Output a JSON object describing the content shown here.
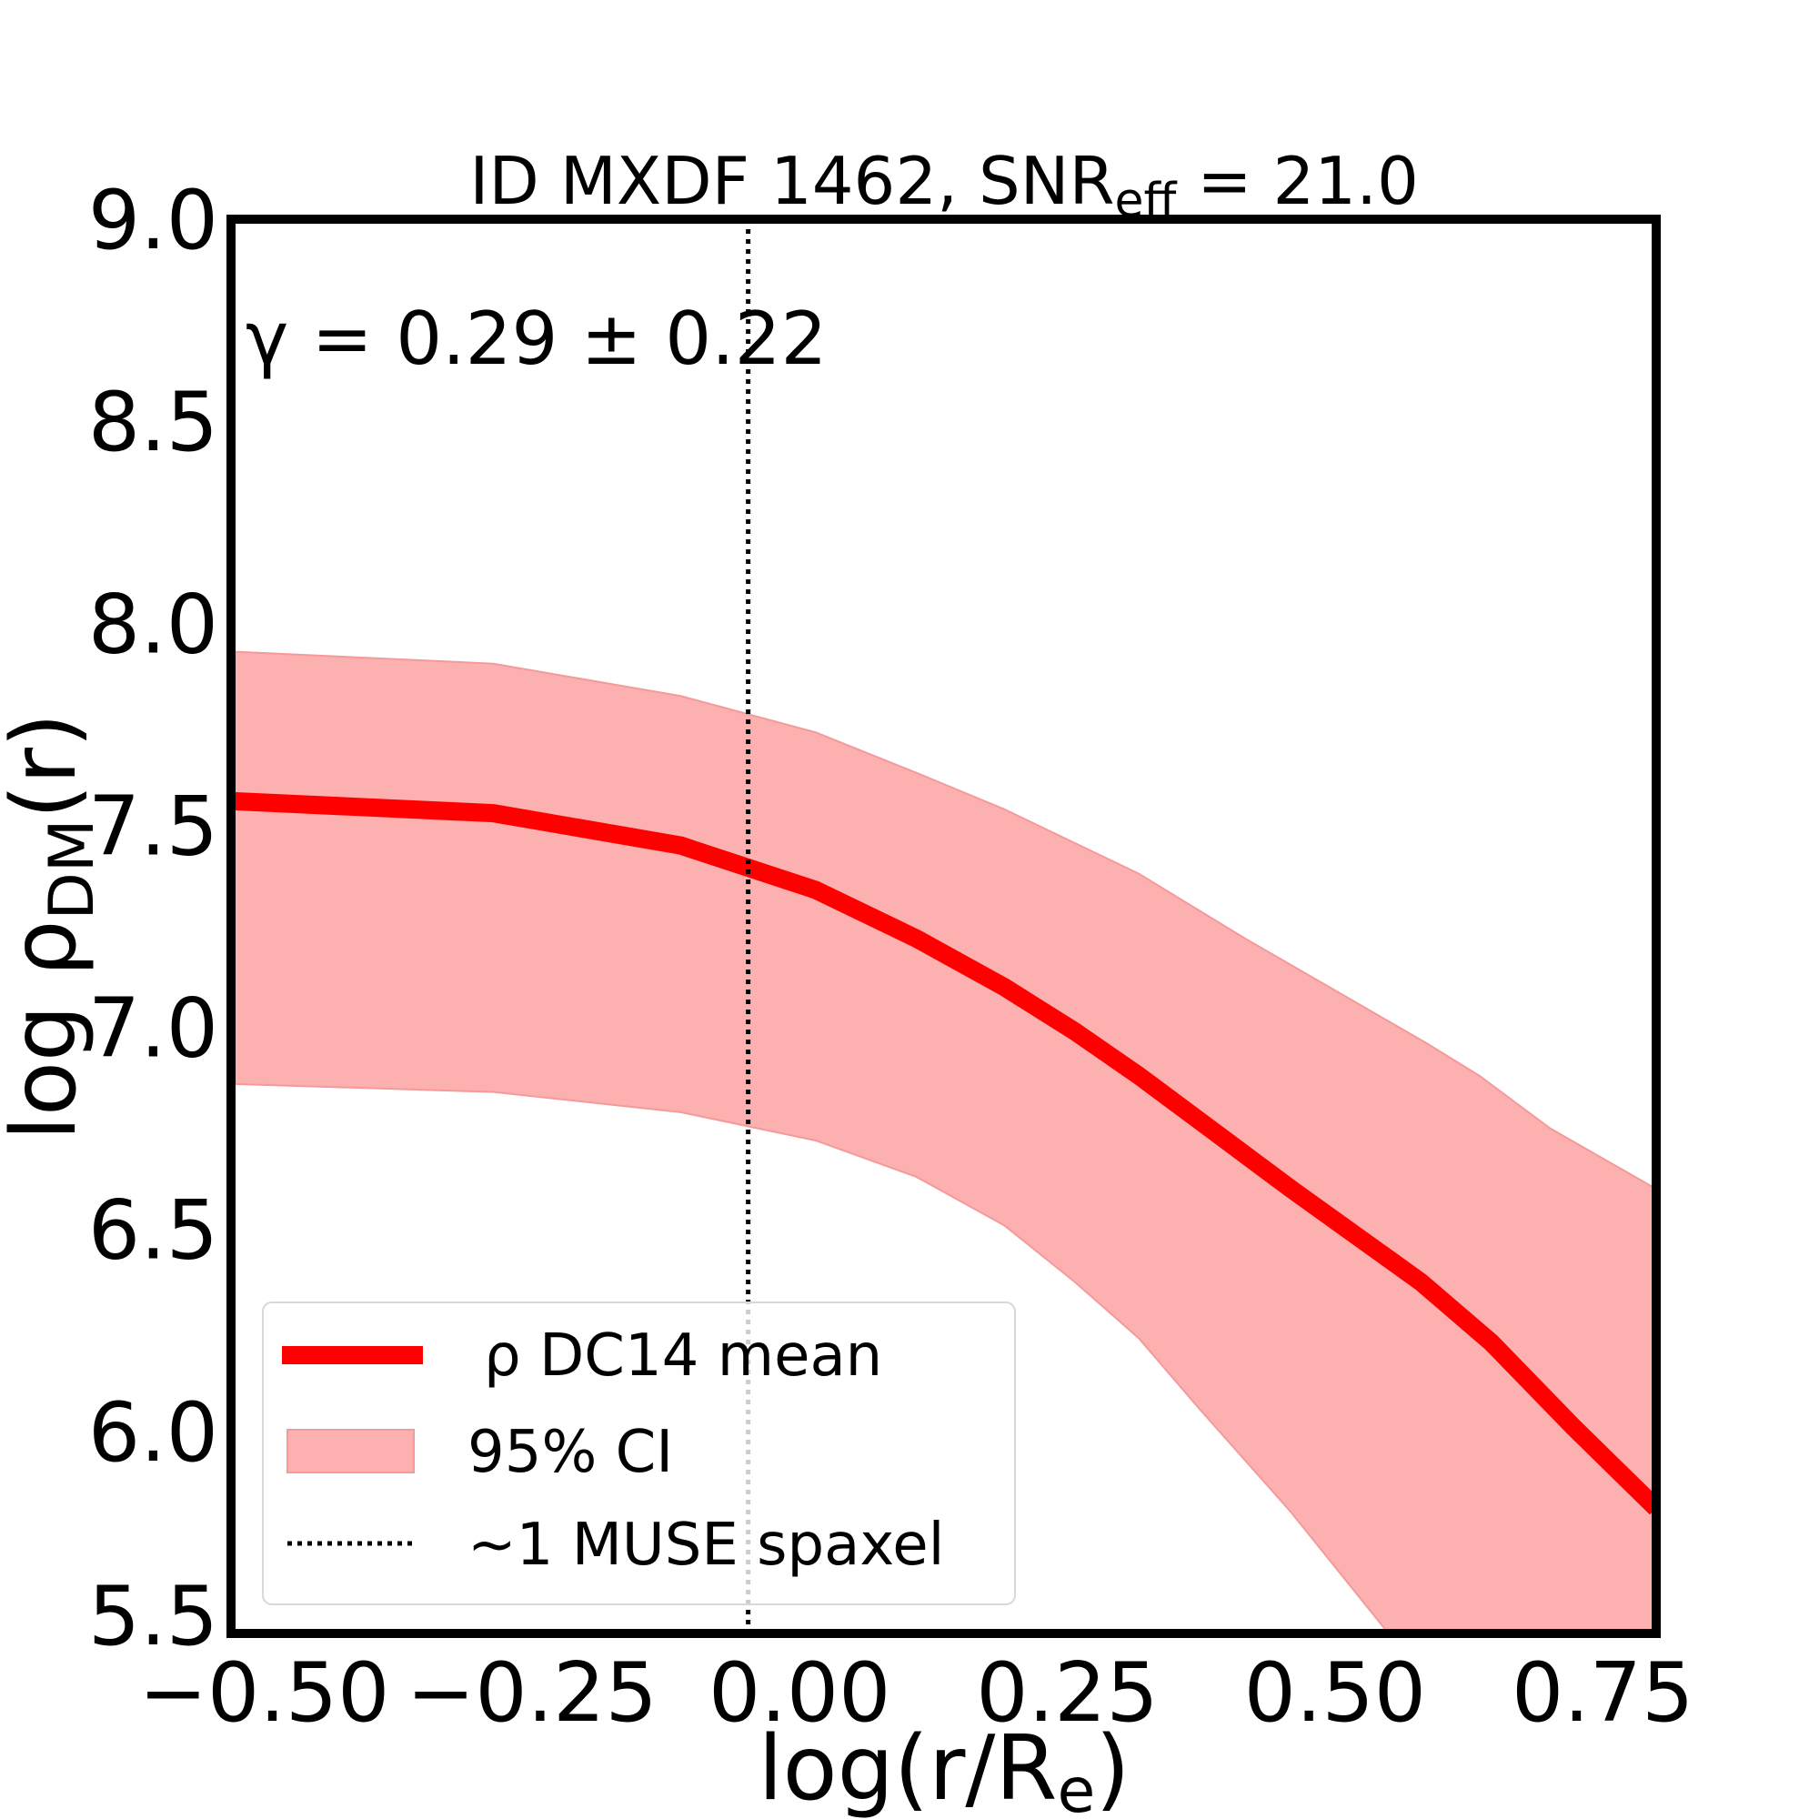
{
  "chart_data": {
    "type": "line",
    "title": "ID MXDF 1462, SNR",
    "title_subscript": "eff",
    "title_suffix": " = 21.0",
    "xlabel": "log(r/R",
    "xlabel_subscript": "e",
    "xlabel_suffix": ")",
    "ylabel": "log ρ",
    "ylabel_subscript": "DM",
    "ylabel_suffix": "(r)",
    "xlim": [
      -0.531,
      0.8
    ],
    "ylim": [
      5.5,
      9.0
    ],
    "xticks": [
      -0.5,
      -0.25,
      0.0,
      0.25,
      0.5,
      0.75
    ],
    "xtick_labels": [
      "−0.50",
      "−0.25",
      "0.00",
      "0.25",
      "0.50",
      "0.75"
    ],
    "yticks": [
      5.5,
      6.0,
      6.5,
      7.0,
      7.5,
      8.0,
      8.5,
      9.0
    ],
    "ytick_labels": [
      "5.5",
      "6.0",
      "6.5",
      "7.0",
      "7.5",
      "8.0",
      "8.5",
      "9.0"
    ],
    "grid": false,
    "legend_position": "lower-left",
    "annotation": "γ = 0.29 ± 0.22",
    "vline": {
      "x": -0.048,
      "name": "~1 MUSE spaxel",
      "color": "#000000"
    },
    "series": [
      {
        "name": "ρ DC14 mean",
        "color": "#ff0000",
        "x": [
          -0.531,
          -0.286,
          -0.111,
          0.015,
          0.109,
          0.191,
          0.257,
          0.317,
          0.383,
          0.459,
          0.58,
          0.646,
          0.723,
          0.8
        ],
        "y": [
          7.56,
          7.53,
          7.45,
          7.34,
          7.22,
          7.1,
          6.99,
          6.88,
          6.75,
          6.6,
          6.37,
          6.22,
          6.01,
          5.81
        ]
      }
    ],
    "band": {
      "name": "95% CI",
      "color": "#fcb0b0",
      "upper": {
        "x": [
          -0.531,
          -0.286,
          -0.111,
          0.015,
          0.109,
          0.191,
          0.317,
          0.416,
          0.586,
          0.635,
          0.701,
          0.8
        ],
        "y": [
          7.93,
          7.9,
          7.82,
          7.73,
          7.63,
          7.54,
          7.38,
          7.22,
          6.96,
          6.88,
          6.75,
          6.6
        ]
      },
      "lower": {
        "x": [
          -0.531,
          -0.286,
          -0.111,
          0.015,
          0.109,
          0.191,
          0.257,
          0.317,
          0.372,
          0.459,
          0.55,
          0.8
        ],
        "y": [
          6.86,
          6.84,
          6.79,
          6.72,
          6.63,
          6.51,
          6.37,
          6.23,
          6.06,
          5.8,
          5.5,
          4.9
        ]
      }
    }
  }
}
